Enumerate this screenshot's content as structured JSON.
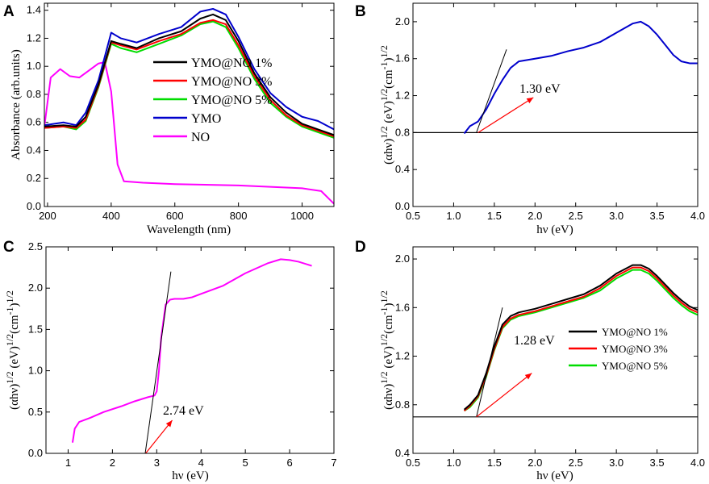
{
  "chart_data": [
    {
      "panel": "A",
      "type": "line",
      "xlabel": "Wavelength (nm)",
      "ylabel": "Absorbance (arb.units)",
      "xlim": [
        190,
        1100
      ],
      "ylim": [
        0.0,
        1.45
      ],
      "xticks": [
        200,
        400,
        600,
        800,
        1000
      ],
      "yticks": [
        0.0,
        0.2,
        0.4,
        0.6,
        0.8,
        1.0,
        1.2,
        1.4
      ],
      "ytick_labels": [
        "0.0",
        "0.2",
        "0.4",
        "0.6",
        "0.8",
        "1.0",
        "1.2",
        "1.4"
      ],
      "legend_position": "center",
      "series": [
        {
          "name": "YMO@NO 1%",
          "color": "#000000",
          "x": [
            190,
            250,
            290,
            320,
            360,
            400,
            430,
            480,
            550,
            620,
            680,
            720,
            760,
            800,
            850,
            900,
            950,
            1000,
            1050,
            1100
          ],
          "y": [
            0.57,
            0.58,
            0.57,
            0.64,
            0.87,
            1.18,
            1.16,
            1.13,
            1.2,
            1.25,
            1.34,
            1.37,
            1.33,
            1.18,
            0.95,
            0.78,
            0.67,
            0.59,
            0.55,
            0.51
          ]
        },
        {
          "name": "YMO@NO 3%",
          "color": "#ff0000",
          "x": [
            190,
            250,
            290,
            320,
            360,
            400,
            430,
            480,
            550,
            620,
            680,
            720,
            760,
            800,
            850,
            900,
            950,
            1000,
            1050,
            1100
          ],
          "y": [
            0.56,
            0.57,
            0.56,
            0.62,
            0.86,
            1.17,
            1.15,
            1.12,
            1.18,
            1.23,
            1.31,
            1.33,
            1.3,
            1.15,
            0.93,
            0.76,
            0.65,
            0.58,
            0.54,
            0.5
          ]
        },
        {
          "name": "YMO@NO 5%",
          "color": "#00dd00",
          "x": [
            190,
            250,
            290,
            320,
            360,
            400,
            430,
            480,
            550,
            620,
            680,
            720,
            760,
            800,
            850,
            900,
            950,
            1000,
            1050,
            1100
          ],
          "y": [
            0.56,
            0.57,
            0.55,
            0.61,
            0.85,
            1.16,
            1.13,
            1.1,
            1.16,
            1.22,
            1.3,
            1.32,
            1.28,
            1.13,
            0.91,
            0.74,
            0.64,
            0.57,
            0.53,
            0.49
          ]
        },
        {
          "name": "YMO",
          "color": "#0000cc",
          "x": [
            190,
            250,
            290,
            320,
            360,
            400,
            430,
            480,
            550,
            620,
            680,
            720,
            760,
            800,
            850,
            900,
            950,
            1000,
            1050,
            1100
          ],
          "y": [
            0.58,
            0.6,
            0.58,
            0.67,
            0.9,
            1.24,
            1.2,
            1.17,
            1.23,
            1.28,
            1.39,
            1.41,
            1.37,
            1.21,
            0.98,
            0.81,
            0.71,
            0.64,
            0.61,
            0.55
          ]
        },
        {
          "name": "NO",
          "color": "#ff00ff",
          "x": [
            190,
            210,
            240,
            270,
            300,
            330,
            360,
            380,
            400,
            420,
            440,
            500,
            600,
            800,
            1000,
            1060,
            1100
          ],
          "y": [
            0.57,
            0.92,
            0.98,
            0.93,
            0.92,
            0.97,
            1.02,
            1.03,
            0.82,
            0.3,
            0.18,
            0.17,
            0.16,
            0.15,
            0.13,
            0.11,
            0.02
          ]
        }
      ]
    },
    {
      "panel": "B",
      "type": "line",
      "xlabel": "hν (eV)",
      "ylabel": "(αhν)1/2 (eV)1/2(cm-1)1/2",
      "xlim": [
        0.5,
        4.0
      ],
      "ylim": [
        0.0,
        2.2
      ],
      "xticks": [
        0.5,
        1.0,
        1.5,
        2.0,
        2.5,
        3.0,
        3.5,
        4.0
      ],
      "yticks": [
        0.0,
        0.4,
        0.8,
        1.2,
        1.6,
        2.0
      ],
      "xtick_labels": [
        "0.5",
        "1.0",
        "1.5",
        "2.0",
        "2.5",
        "3.0",
        "3.5",
        "4.0"
      ],
      "ytick_labels": [
        "0.0",
        "0.4",
        "0.8",
        "1.2",
        "1.6",
        "2.0"
      ],
      "baseline_y": 0.8,
      "tangent": [
        [
          1.28,
          0.8
        ],
        [
          1.65,
          1.7
        ]
      ],
      "arrow": [
        [
          1.3,
          0.8
        ],
        [
          1.98,
          1.18
        ]
      ],
      "annotation": "1.30 eV",
      "series": [
        {
          "name": "YMO",
          "color": "#0000cc",
          "x": [
            1.13,
            1.2,
            1.3,
            1.4,
            1.5,
            1.6,
            1.7,
            1.8,
            2.0,
            2.2,
            2.4,
            2.6,
            2.8,
            3.0,
            3.2,
            3.3,
            3.4,
            3.5,
            3.6,
            3.7,
            3.8,
            3.9,
            4.0
          ],
          "y": [
            0.79,
            0.87,
            0.92,
            1.05,
            1.22,
            1.37,
            1.5,
            1.57,
            1.6,
            1.63,
            1.68,
            1.72,
            1.78,
            1.88,
            1.98,
            2.0,
            1.95,
            1.86,
            1.75,
            1.64,
            1.57,
            1.55,
            1.55
          ]
        }
      ]
    },
    {
      "panel": "C",
      "type": "line",
      "xlabel": "hν (eV)",
      "ylabel": "(αhν)1/2 (eV)1/2(cm-1)1/2",
      "xlim": [
        0.5,
        7.0
      ],
      "ylim": [
        0.0,
        2.5
      ],
      "xticks": [
        1,
        2,
        3,
        4,
        5,
        6,
        7
      ],
      "yticks": [
        0.0,
        0.5,
        1.0,
        1.5,
        2.0,
        2.5
      ],
      "xtick_labels": [
        "1",
        "2",
        "3",
        "4",
        "5",
        "6",
        "7"
      ],
      "ytick_labels": [
        "0.0",
        "0.5",
        "1.0",
        "1.5",
        "2.0",
        "2.5"
      ],
      "tangent": [
        [
          2.74,
          0.0
        ],
        [
          3.32,
          2.2
        ]
      ],
      "arrow": [
        [
          2.75,
          0.0
        ],
        [
          3.35,
          0.4
        ]
      ],
      "annotation": "2.74 eV",
      "series": [
        {
          "name": "NO",
          "color": "#ff00ff",
          "x": [
            1.1,
            1.15,
            1.25,
            1.5,
            1.8,
            2.2,
            2.5,
            2.8,
            2.95,
            3.0,
            3.05,
            3.1,
            3.2,
            3.3,
            3.4,
            3.6,
            3.8,
            4.0,
            4.5,
            5.0,
            5.5,
            5.8,
            6.0,
            6.2,
            6.5
          ],
          "y": [
            0.13,
            0.3,
            0.38,
            0.43,
            0.5,
            0.57,
            0.63,
            0.68,
            0.7,
            0.75,
            1.0,
            1.4,
            1.8,
            1.86,
            1.87,
            1.87,
            1.89,
            1.93,
            2.03,
            2.18,
            2.3,
            2.35,
            2.34,
            2.32,
            2.27
          ]
        }
      ]
    },
    {
      "panel": "D",
      "type": "line",
      "xlabel": "hν (eV)",
      "ylabel": "(αhν)1/2 (eV)1/2(cm-1)1/2",
      "xlim": [
        0.5,
        4.0
      ],
      "ylim": [
        0.4,
        2.1
      ],
      "xticks": [
        0.5,
        1.0,
        1.5,
        2.0,
        2.5,
        3.0,
        3.5,
        4.0
      ],
      "yticks": [
        0.4,
        0.8,
        1.2,
        1.6,
        2.0
      ],
      "xtick_labels": [
        "0.5",
        "1.0",
        "1.5",
        "2.0",
        "2.5",
        "3.0",
        "3.5",
        "4.0"
      ],
      "ytick_labels": [
        "0.4",
        "0.8",
        "1.2",
        "1.6",
        "2.0"
      ],
      "baseline_y": 0.7,
      "tangent": [
        [
          1.28,
          0.7
        ],
        [
          1.6,
          1.6
        ]
      ],
      "arrow": [
        [
          1.28,
          0.7
        ],
        [
          1.96,
          1.06
        ]
      ],
      "annotation": "1.28 eV",
      "legend_position": "right",
      "series": [
        {
          "name": "YMO@NO 1%",
          "color": "#000000",
          "x": [
            1.13,
            1.2,
            1.3,
            1.4,
            1.5,
            1.6,
            1.7,
            1.8,
            2.0,
            2.2,
            2.4,
            2.6,
            2.8,
            3.0,
            3.2,
            3.3,
            3.4,
            3.5,
            3.6,
            3.7,
            3.8,
            3.9,
            4.0
          ],
          "y": [
            0.76,
            0.8,
            0.88,
            1.06,
            1.28,
            1.46,
            1.53,
            1.56,
            1.59,
            1.63,
            1.67,
            1.71,
            1.78,
            1.88,
            1.95,
            1.95,
            1.92,
            1.86,
            1.79,
            1.72,
            1.66,
            1.61,
            1.58
          ]
        },
        {
          "name": "YMO@NO 3%",
          "color": "#ff0000",
          "x": [
            1.13,
            1.2,
            1.3,
            1.4,
            1.5,
            1.6,
            1.7,
            1.8,
            2.0,
            2.2,
            2.4,
            2.6,
            2.8,
            3.0,
            3.2,
            3.3,
            3.4,
            3.5,
            3.6,
            3.7,
            3.8,
            3.9,
            4.0
          ],
          "y": [
            0.75,
            0.79,
            0.87,
            1.04,
            1.26,
            1.44,
            1.51,
            1.54,
            1.57,
            1.61,
            1.65,
            1.69,
            1.76,
            1.86,
            1.93,
            1.93,
            1.9,
            1.84,
            1.77,
            1.7,
            1.64,
            1.59,
            1.56
          ]
        },
        {
          "name": "YMO@NO 5%",
          "color": "#00dd00",
          "x": [
            1.13,
            1.2,
            1.3,
            1.4,
            1.5,
            1.6,
            1.7,
            1.8,
            2.0,
            2.2,
            2.4,
            2.6,
            2.8,
            3.0,
            3.2,
            3.3,
            3.4,
            3.5,
            3.6,
            3.7,
            3.8,
            3.9,
            4.0
          ],
          "y": [
            0.75,
            0.78,
            0.86,
            1.03,
            1.25,
            1.43,
            1.5,
            1.53,
            1.56,
            1.6,
            1.64,
            1.68,
            1.74,
            1.84,
            1.91,
            1.91,
            1.88,
            1.82,
            1.75,
            1.68,
            1.62,
            1.57,
            1.54
          ]
        }
      ]
    }
  ]
}
